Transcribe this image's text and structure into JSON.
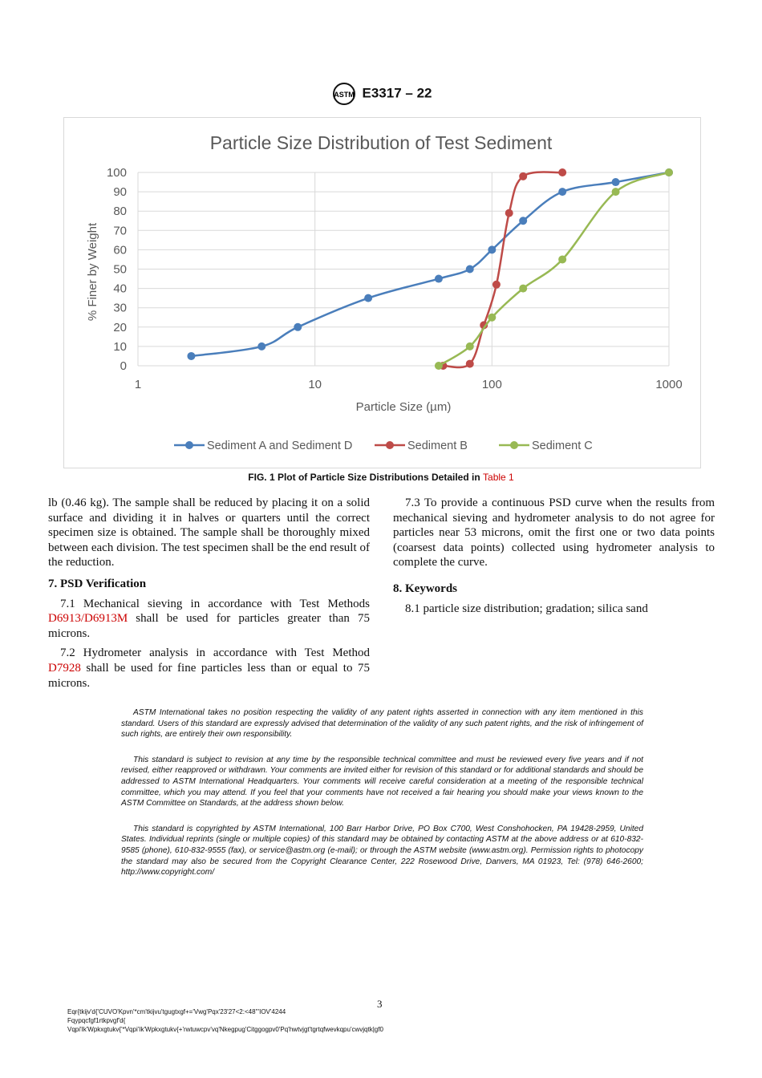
{
  "header": {
    "designation": "E3317 – 22",
    "logo_text": "ASTM"
  },
  "chart_data": {
    "type": "line",
    "title": "Particle Size Distribution of Test Sediment",
    "xlabel": "Particle Size (µm)",
    "ylabel": "% Finer by Weight",
    "xscale": "log",
    "xlim": [
      1,
      1000
    ],
    "ylim": [
      0,
      100
    ],
    "xticks": [
      "1",
      "10",
      "100",
      "1000"
    ],
    "yticks": [
      "0",
      "10",
      "20",
      "30",
      "40",
      "50",
      "60",
      "70",
      "80",
      "90",
      "100"
    ],
    "grid": true,
    "legend": "bottom",
    "series": [
      {
        "name": "Sediment A and Sediment D",
        "color": "#4a7ebb",
        "x": [
          2,
          5,
          8,
          20,
          50,
          75,
          100,
          150,
          250,
          500,
          1000
        ],
        "y": [
          5,
          10,
          20,
          35,
          45,
          50,
          60,
          75,
          90,
          95,
          100
        ]
      },
      {
        "name": "Sediment B",
        "color": "#be4b48",
        "x": [
          53,
          75,
          90,
          106,
          125,
          150,
          250
        ],
        "y": [
          0,
          1,
          21,
          42,
          79,
          98,
          100
        ]
      },
      {
        "name": "Sediment C",
        "color": "#98b954",
        "x": [
          50,
          75,
          100,
          150,
          250,
          500,
          1000
        ],
        "y": [
          0,
          10,
          25,
          40,
          55,
          90,
          100
        ]
      }
    ]
  },
  "figure": {
    "caption": "FIG. 1 Plot of Particle Size Distributions Detailed in",
    "caption_link": "Table 1"
  },
  "left": {
    "p1": "lb (0.46 kg). The sample shall be reduced by placing it on a solid surface and dividing it in halves or quarters until the correct specimen size is obtained. The sample shall be thoroughly mixed between each division. The test specimen shall be the end result of the reduction.",
    "h7": "7.  PSD Verification",
    "p71a": "7.1 Mechanical sieving in accordance with Test Methods",
    "p71link": "D6913/D6913M",
    "p71b": " shall be used for particles greater than 75 microns.",
    "p72a": "7.2 Hydrometer analysis in accordance with Test Method",
    "p72link": "D7928",
    "p72b": " shall be used for fine particles less than or equal to 75 microns."
  },
  "right": {
    "p73": "7.3 To provide a continuous PSD curve when the results from mechanical sieving and hydrometer analysis to do not agree for particles near 53 microns, omit the first one or two data points (coarsest data points) collected using hydrometer analysis to complete the curve.",
    "h8": "8.  Keywords",
    "p81": "8.1 particle size distribution; gradation; silica sand"
  },
  "notes": [
    "ASTM International takes no position respecting the validity of any patent rights asserted in connection with any item mentioned in this standard. Users of this standard are expressly advised that determination of the validity of any such patent rights, and the risk of infringement of such rights, are entirely their own responsibility.",
    "This standard is subject to revision at any time by the responsible technical committee and must be reviewed every five years and if not revised, either reapproved or withdrawn. Your comments are invited either for revision of this standard or for additional standards and should be addressed to ASTM International Headquarters. Your comments will receive careful consideration at a meeting of the responsible technical committee, which you may attend. If you feel that your comments have not received a fair hearing you should make your views known to the ASTM Committee on Standards, at the address shown below.",
    "This standard is copyrighted by ASTM International, 100 Barr Harbor Drive, PO Box C700, West Conshohocken, PA 19428-2959, United States. Individual reprints (single or multiple copies) of this standard may be obtained by contacting ASTM at the above address or at 610-832-9585 (phone), 610-832-9555 (fax), or service@astm.org (e-mail); or through the ASTM website (www.astm.org). Permission rights to photocopy the standard may also be secured from the Copyright Clearance Center, 222 Rosewood Drive, Danvers, MA 01923, Tel: (978) 646-2600; http://www.copyright.com/"
  ],
  "page_number": "3",
  "footer": [
    "Eqr{tkijv'd{'CUVO'Kpvn'*cm'tkijvu'tgugtxgf+='Vwg'Pqx'23'27<2:<48'''IOV'4244",
    "Fqypqcfgf1rtkpvgf'd{",
    "Vqpi'Ik'Wpkxgtukv{'*Vqpi'Ik'Wpkxgtukv{+'rwtuwcpv'vq'Nkegpug'Citggogpv0'Pq'hwtvjgt'tgrtqfwevkqpu'cwvjqtk|gf0"
  ]
}
